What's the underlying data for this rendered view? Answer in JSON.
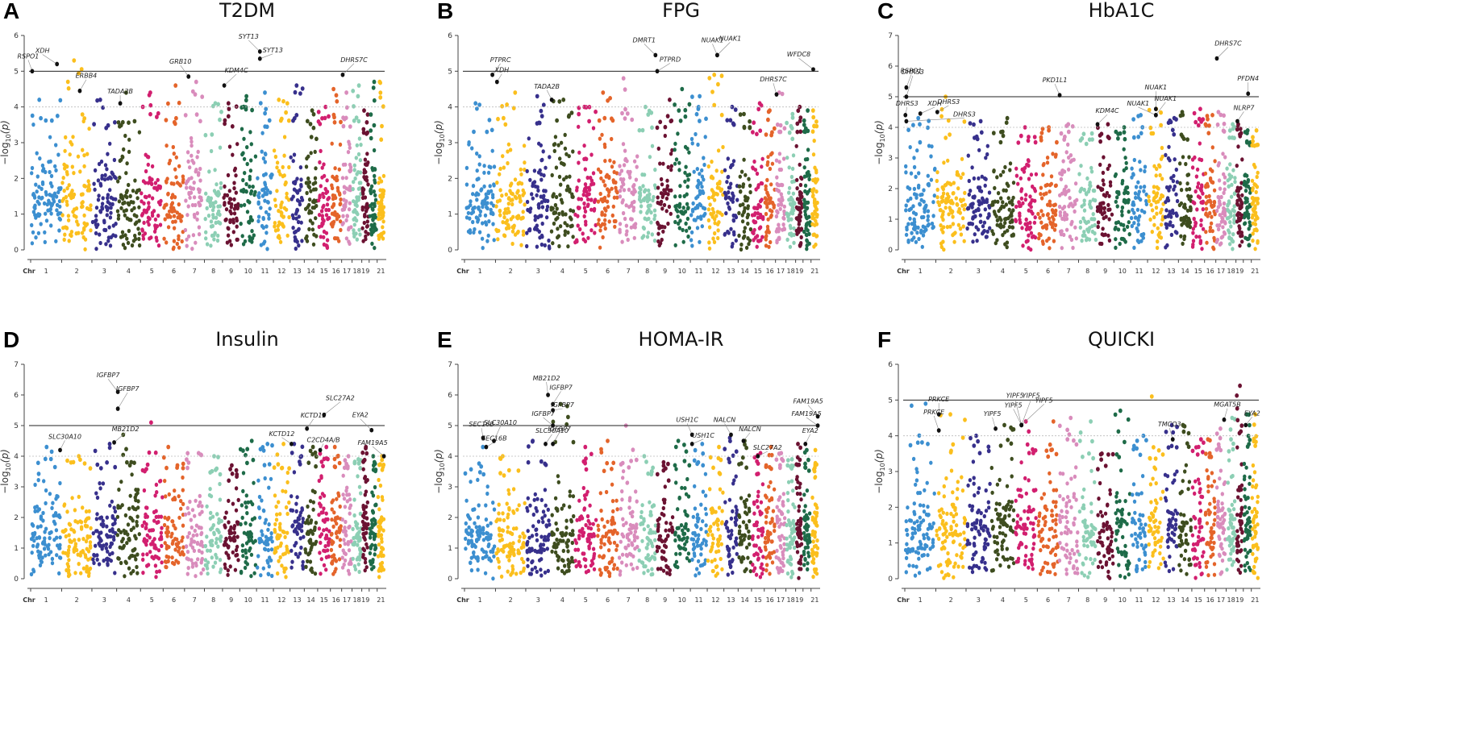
{
  "figure": {
    "chr_axis_label": "Chr",
    "y_axis_label_main": "−log",
    "y_axis_label_sub": "10",
    "y_axis_label_tail": "(p)",
    "chromosome_ticks": [
      "1",
      "2",
      "3",
      "4",
      "5",
      "6",
      "7",
      "8",
      "9",
      "10",
      "11",
      "12",
      "13",
      "14",
      "15",
      "16",
      "17",
      "18",
      "19",
      "21"
    ]
  },
  "chart_data": [
    {
      "type": "scatter",
      "subtype": "manhattan",
      "panel": "A",
      "title": "T2DM",
      "ylim": [
        0,
        6
      ],
      "yticks": [
        0,
        1,
        2,
        3,
        4,
        5,
        6
      ],
      "significance_line": 5,
      "suggestive_line": 4,
      "baseline": [
        3.6,
        3.6,
        3.4,
        3.4,
        3.5,
        3.5,
        3.6,
        3.2,
        3.4,
        3.9,
        3.4,
        3.6,
        3.5,
        3.1,
        3.5,
        3.3,
        3.4,
        3.6,
        3.2,
        3.0
      ],
      "peaks": [
        4.2,
        5.3,
        4.2,
        4.4,
        4.4,
        4.6,
        4.7,
        4.1,
        4.1,
        4.3,
        4.4,
        4.2,
        4.6,
        3.9,
        4.0,
        4.5,
        4.4,
        4.6,
        3.9,
        4.7
      ],
      "annotations": [
        {
          "gene": "RSPO1",
          "chr": 1,
          "pos": 0.05,
          "p": 5.0,
          "dx": -5,
          "dy": -16
        },
        {
          "gene": "XDH",
          "chr": 1,
          "pos": 0.85,
          "p": 5.2,
          "dx": -18,
          "dy": -14
        },
        {
          "gene": "ERBB4",
          "chr": 2,
          "pos": 0.6,
          "p": 4.45,
          "dx": 8,
          "dy": -16
        },
        {
          "gene": "TADA2B",
          "chr": 4,
          "pos": 0.15,
          "p": 4.1,
          "dx": 0,
          "dy": -12
        },
        {
          "gene": "GRB10",
          "chr": 7,
          "pos": 0.2,
          "p": 4.85,
          "dx": -10,
          "dy": -16
        },
        {
          "gene": "KDM4C",
          "chr": 9,
          "pos": 0.1,
          "p": 4.6,
          "dx": 15,
          "dy": -16
        },
        {
          "gene": "SYT13",
          "chr": 11,
          "pos": 0.2,
          "p": 5.55,
          "dx": -14,
          "dy": -16
        },
        {
          "gene": "SYT13",
          "chr": 11,
          "pos": 0.2,
          "p": 5.35,
          "dx": 16,
          "dy": -8
        },
        {
          "gene": "DHRS7C",
          "chr": 17,
          "pos": 0.1,
          "p": 4.9,
          "dx": 14,
          "dy": -16
        }
      ]
    },
    {
      "type": "scatter",
      "subtype": "manhattan",
      "panel": "B",
      "title": "FPG",
      "ylim": [
        0,
        6
      ],
      "yticks": [
        0,
        1,
        2,
        3,
        4,
        5,
        6
      ],
      "significance_line": 5,
      "suggestive_line": 4,
      "baseline": [
        3.3,
        3.4,
        3.5,
        3.6,
        3.6,
        3.6,
        3.6,
        3.3,
        3.4,
        3.6,
        3.6,
        3.6,
        3.5,
        3.3,
        3.2,
        3.2,
        3.3,
        3.1,
        3.3,
        3.3
      ],
      "peaks": [
        4.1,
        4.4,
        4.3,
        4.2,
        4.0,
        4.4,
        4.8,
        4.0,
        4.2,
        4.5,
        4.3,
        4.9,
        4.0,
        3.8,
        4.1,
        3.9,
        4.4,
        3.8,
        4.0,
        3.9
      ],
      "annotations": [
        {
          "gene": "PTPRC",
          "chr": 1,
          "pos": 0.9,
          "p": 4.9,
          "dx": 10,
          "dy": -16
        },
        {
          "gene": "XDH",
          "chr": 2,
          "pos": 0.05,
          "p": 4.7,
          "dx": 6,
          "dy": -12
        },
        {
          "gene": "TADA2B",
          "chr": 4,
          "pos": 0.05,
          "p": 4.2,
          "dx": -6,
          "dy": -14
        },
        {
          "gene": "DMRT1",
          "chr": 8,
          "pos": 0.95,
          "p": 5.45,
          "dx": -14,
          "dy": -16
        },
        {
          "gene": "PTPRD",
          "chr": 9,
          "pos": 0.05,
          "p": 5.0,
          "dx": 16,
          "dy": -12
        },
        {
          "gene": "NUAK1",
          "chr": 12,
          "pos": 0.6,
          "p": 5.45,
          "dx": -6,
          "dy": -16
        },
        {
          "gene": "NUAK1",
          "chr": 12,
          "pos": 0.6,
          "p": 5.45,
          "dx": 16,
          "dy": -18
        },
        {
          "gene": "DHRS7C",
          "chr": 17,
          "pos": 0.1,
          "p": 4.35,
          "dx": -4,
          "dy": -16
        },
        {
          "gene": "WFDC8",
          "chr": 21,
          "pos": 0.3,
          "p": 5.05,
          "dx": -18,
          "dy": -16
        }
      ]
    },
    {
      "type": "scatter",
      "subtype": "manhattan",
      "panel": "C",
      "title": "HbA1C",
      "ylim": [
        0,
        7
      ],
      "yticks": [
        0,
        1,
        2,
        3,
        4,
        5,
        6,
        7
      ],
      "significance_line": 5,
      "suggestive_line": 4,
      "baseline": [
        3.5,
        3.6,
        3.6,
        3.5,
        3.5,
        3.5,
        3.6,
        3.4,
        3.4,
        3.6,
        3.6,
        3.8,
        3.7,
        3.6,
        4.0,
        3.8,
        3.8,
        3.6,
        3.6,
        3.4
      ],
      "peaks": [
        4.3,
        5.0,
        4.2,
        4.3,
        4.0,
        4.0,
        4.1,
        3.8,
        4.1,
        4.0,
        4.4,
        4.6,
        4.3,
        4.5,
        4.6,
        4.4,
        4.5,
        4.1,
        4.1,
        3.9
      ],
      "annotations": [
        {
          "gene": "RSPO1",
          "chr": 1,
          "pos": 0.05,
          "p": 5.3,
          "dx": 6,
          "dy": -18
        },
        {
          "gene": "DHRS3",
          "chr": 1,
          "pos": 0.05,
          "p": 5.0,
          "dx": 8,
          "dy": -28
        },
        {
          "gene": "DHRS3",
          "chr": 1,
          "pos": 0.02,
          "p": 4.4,
          "dx": 2,
          "dy": -12
        },
        {
          "gene": "XDH",
          "chr": 1,
          "pos": 0.5,
          "p": 4.45,
          "dx": 18,
          "dy": -10
        },
        {
          "gene": "DHRS3",
          "chr": 2,
          "pos": 0.05,
          "p": 4.5,
          "dx": 14,
          "dy": -10
        },
        {
          "gene": "DHRS3",
          "chr": 1,
          "pos": 0.05,
          "p": 4.2,
          "dx": 72,
          "dy": -6
        },
        {
          "gene": "PKD1L1",
          "chr": 7,
          "pos": 0.05,
          "p": 5.05,
          "dx": -6,
          "dy": -16
        },
        {
          "gene": "KDM4C",
          "chr": 9,
          "pos": 0.05,
          "p": 4.1,
          "dx": 12,
          "dy": -14
        },
        {
          "gene": "NUAK1",
          "chr": 12,
          "pos": 0.5,
          "p": 4.6,
          "dx": 0,
          "dy": -24
        },
        {
          "gene": "NUAK1",
          "chr": 12,
          "pos": 0.5,
          "p": 4.4,
          "dx": -22,
          "dy": -12
        },
        {
          "gene": "NUAK1",
          "chr": 12,
          "pos": 0.5,
          "p": 4.4,
          "dx": 12,
          "dy": -18
        },
        {
          "gene": "DHRS7C",
          "chr": 17,
          "pos": 0.1,
          "p": 6.25,
          "dx": 14,
          "dy": -16
        },
        {
          "gene": "PFDN4",
          "chr": 20,
          "pos": 0.6,
          "p": 5.1,
          "dx": 0,
          "dy": -16
        },
        {
          "gene": "NLRP7",
          "chr": 19,
          "pos": 0.2,
          "p": 4.2,
          "dx": 8,
          "dy": -14
        }
      ]
    },
    {
      "type": "scatter",
      "subtype": "manhattan",
      "panel": "D",
      "title": "Insulin",
      "ylim": [
        0,
        7
      ],
      "yticks": [
        0,
        1,
        2,
        3,
        4,
        5,
        6,
        7
      ],
      "significance_line": 5,
      "suggestive_line": 4,
      "baseline": [
        3.4,
        3.3,
        3.6,
        3.7,
        3.5,
        3.6,
        3.5,
        3.4,
        3.2,
        3.7,
        3.7,
        3.6,
        3.6,
        3.6,
        3.6,
        3.6,
        3.6,
        3.6,
        3.8,
        3.5
      ],
      "peaks": [
        4.3,
        4.0,
        4.4,
        4.7,
        5.1,
        4.3,
        4.1,
        4.0,
        3.7,
        4.5,
        4.4,
        4.4,
        4.4,
        4.3,
        4.3,
        4.3,
        4.0,
        3.9,
        4.3,
        4.0
      ],
      "annotations": [
        {
          "gene": "SLC30A10",
          "chr": 1,
          "pos": 0.95,
          "p": 4.2,
          "dx": 6,
          "dy": -14
        },
        {
          "gene": "IGFBP7",
          "chr": 4,
          "pos": 0.05,
          "p": 6.1,
          "dx": -12,
          "dy": -18
        },
        {
          "gene": "IGFBP7",
          "chr": 4,
          "pos": 0.05,
          "p": 5.55,
          "dx": 12,
          "dy": -22
        },
        {
          "gene": "MB21D2",
          "chr": 3,
          "pos": 0.9,
          "p": 4.45,
          "dx": 14,
          "dy": -14
        },
        {
          "gene": "KCTD12",
          "chr": 13,
          "pos": 0.1,
          "p": 4.4,
          "dx": -12,
          "dy": -10
        },
        {
          "gene": "KCTD12",
          "chr": 14,
          "pos": 0.2,
          "p": 4.9,
          "dx": 8,
          "dy": -14
        },
        {
          "gene": "C2CD4A/B",
          "chr": 15,
          "pos": 0.2,
          "p": 4.2,
          "dx": 4,
          "dy": -10
        },
        {
          "gene": "SLC27A2",
          "chr": 15,
          "pos": 0.5,
          "p": 5.35,
          "dx": 20,
          "dy": -18
        },
        {
          "gene": "EYA2",
          "chr": 20,
          "pos": 0.3,
          "p": 4.85,
          "dx": -14,
          "dy": -16
        },
        {
          "gene": "FAM19A5",
          "chr": 21,
          "pos": 0.9,
          "p": 4.0,
          "dx": -14,
          "dy": -14
        }
      ]
    },
    {
      "type": "scatter",
      "subtype": "manhattan",
      "panel": "E",
      "title": "HOMA-IR",
      "ylim": [
        0,
        7
      ],
      "yticks": [
        0,
        1,
        2,
        3,
        4,
        5,
        6,
        7
      ],
      "significance_line": 5,
      "suggestive_line": 4,
      "baseline": [
        3.4,
        3.3,
        3.6,
        3.6,
        3.5,
        3.5,
        3.6,
        3.4,
        3.2,
        3.7,
        3.6,
        3.4,
        3.5,
        3.6,
        3.4,
        3.5,
        3.6,
        3.5,
        3.7,
        3.5
      ],
      "peaks": [
        4.3,
        4.0,
        4.5,
        5.7,
        4.3,
        4.5,
        5.0,
        4.0,
        3.8,
        4.5,
        4.4,
        4.3,
        4.6,
        4.5,
        4.1,
        4.3,
        4.1,
        3.9,
        4.4,
        4.2
      ],
      "annotations": [
        {
          "gene": "SEC16B",
          "chr": 1,
          "pos": 0.6,
          "p": 4.6,
          "dx": -2,
          "dy": -14
        },
        {
          "gene": "SEC16B",
          "chr": 1,
          "pos": 0.7,
          "p": 4.3,
          "dx": 10,
          "dy": -8
        },
        {
          "gene": "SLC30A10",
          "chr": 1,
          "pos": 0.95,
          "p": 4.5,
          "dx": 8,
          "dy": -20
        },
        {
          "gene": "SLC30A10",
          "chr": 3,
          "pos": 0.8,
          "p": 4.4,
          "dx": 8,
          "dy": -14
        },
        {
          "gene": "MB21D2",
          "chr": 3,
          "pos": 0.9,
          "p": 6.0,
          "dx": -2,
          "dy": -18
        },
        {
          "gene": "IGFBP7",
          "chr": 4,
          "pos": 0.1,
          "p": 5.7,
          "dx": 10,
          "dy": -18
        },
        {
          "gene": "IGFBP7",
          "chr": 4,
          "pos": 0.1,
          "p": 5.5,
          "dx": 12,
          "dy": -4
        },
        {
          "gene": "IGFBP7",
          "chr": 4,
          "pos": 0.1,
          "p": 5.0,
          "dx": -12,
          "dy": -12
        },
        {
          "gene": "IGFBP7",
          "chr": 4,
          "pos": 0.1,
          "p": 4.4,
          "dx": 8,
          "dy": -16
        },
        {
          "gene": "USH1C",
          "chr": 11,
          "pos": 0.1,
          "p": 4.7,
          "dx": -6,
          "dy": -16
        },
        {
          "gene": "USH1C",
          "chr": 11,
          "pos": 0.1,
          "p": 4.4,
          "dx": 14,
          "dy": -8
        },
        {
          "gene": "NALCN",
          "chr": 13,
          "pos": 0.5,
          "p": 4.7,
          "dx": -8,
          "dy": -16
        },
        {
          "gene": "NALCN",
          "chr": 14,
          "pos": 0.4,
          "p": 4.5,
          "dx": 8,
          "dy": -12
        },
        {
          "gene": "SLC27A2",
          "chr": 15,
          "pos": 0.5,
          "p": 4.0,
          "dx": 12,
          "dy": -8
        },
        {
          "gene": "EYA2",
          "chr": 20,
          "pos": 0.3,
          "p": 4.4,
          "dx": 6,
          "dy": -14
        },
        {
          "gene": "FAM19A5",
          "chr": 21,
          "pos": 0.9,
          "p": 5.3,
          "dx": -12,
          "dy": -16
        },
        {
          "gene": "FAM19A5",
          "chr": 21,
          "pos": 0.9,
          "p": 5.0,
          "dx": -14,
          "dy": -12
        }
      ]
    },
    {
      "type": "scatter",
      "subtype": "manhattan",
      "panel": "F",
      "title": "QUICKI",
      "ylim": [
        0,
        6
      ],
      "yticks": [
        0,
        1,
        2,
        3,
        4,
        5,
        6
      ],
      "significance_line": 5,
      "suggestive_line": 4,
      "baseline": [
        3.7,
        3.5,
        3.4,
        3.5,
        3.5,
        3.4,
        3.7,
        3.3,
        3.0,
        3.4,
        3.2,
        3.3,
        3.6,
        3.6,
        3.4,
        3.4,
        3.5,
        3.4,
        3.8,
        3.6
      ],
      "peaks": [
        4.9,
        4.6,
        4.0,
        4.3,
        4.4,
        4.4,
        4.5,
        4.4,
        3.5,
        4.7,
        4.0,
        5.1,
        4.3,
        4.3,
        3.9,
        3.9,
        4.2,
        4.5,
        5.4,
        4.6
      ],
      "annotations": [
        {
          "gene": "PRKCE",
          "chr": 2,
          "pos": 0.1,
          "p": 4.6,
          "dx": 0,
          "dy": -16
        },
        {
          "gene": "PRKCE",
          "chr": 2,
          "pos": 0.1,
          "p": 4.15,
          "dx": -6,
          "dy": -20
        },
        {
          "gene": "YIPF5",
          "chr": 4,
          "pos": 0.2,
          "p": 4.2,
          "dx": -4,
          "dy": -16
        },
        {
          "gene": "YIPF5",
          "chr": 5,
          "pos": 0.3,
          "p": 4.3,
          "dx": -10,
          "dy": -22
        },
        {
          "gene": "YIPF5",
          "chr": 5,
          "pos": 0.3,
          "p": 4.3,
          "dx": -8,
          "dy": -34
        },
        {
          "gene": "YIPF5",
          "chr": 5,
          "pos": 0.3,
          "p": 4.3,
          "dx": 12,
          "dy": -34
        },
        {
          "gene": "YIPF5",
          "chr": 5,
          "pos": 0.3,
          "p": 4.3,
          "dx": 28,
          "dy": -28
        },
        {
          "gene": "TMCO3",
          "chr": 13,
          "pos": 0.6,
          "p": 3.9,
          "dx": -4,
          "dy": -16
        },
        {
          "gene": "MGAT5B",
          "chr": 17,
          "pos": 0.8,
          "p": 4.45,
          "dx": 4,
          "dy": -16
        },
        {
          "gene": "EYA2",
          "chr": 20,
          "pos": 0.3,
          "p": 4.3,
          "dx": 8,
          "dy": -12
        }
      ]
    }
  ]
}
